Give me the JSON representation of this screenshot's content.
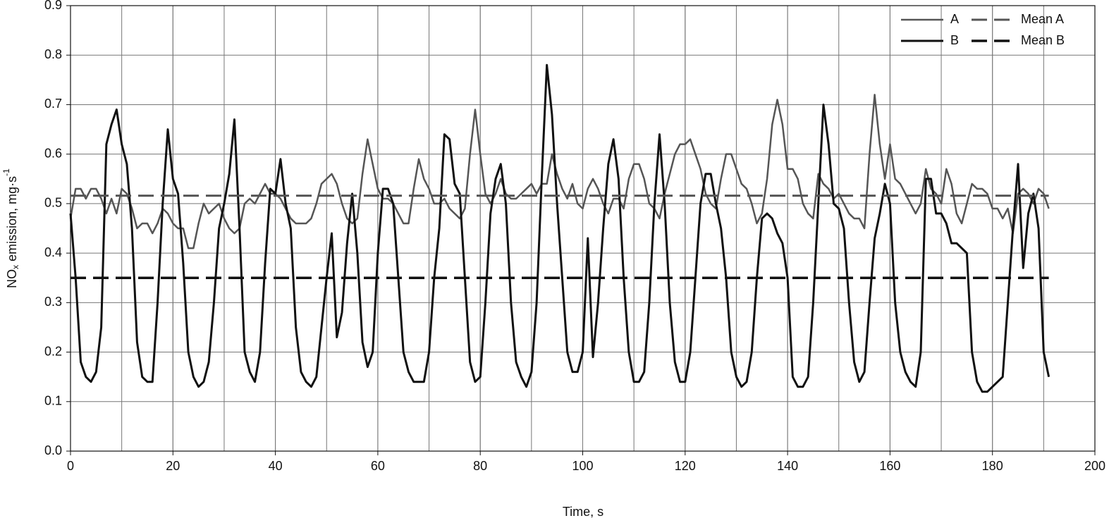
{
  "chart_data": {
    "type": "line",
    "xlabel": "Time, s",
    "ylabel": {
      "parts": [
        "NO",
        "x",
        " emission, mg·s",
        "-1"
      ]
    },
    "xlim": [
      0,
      200
    ],
    "xticks": [
      0,
      20,
      40,
      60,
      80,
      100,
      120,
      140,
      160,
      180,
      200
    ],
    "x_grid_step": 10,
    "ylim": [
      0,
      0.9
    ],
    "yticks": [
      {
        "value": 0,
        "label": "0.0"
      },
      0.1,
      0.2,
      0.3,
      0.4,
      0.5,
      0.6,
      0.7,
      0.8,
      0.9
    ],
    "grid": true,
    "legend": "upper right",
    "x": [
      0,
      1,
      2,
      3,
      4,
      5,
      6,
      7,
      8,
      9,
      10,
      11,
      12,
      13,
      14,
      15,
      16,
      17,
      18,
      19,
      20,
      21,
      22,
      23,
      24,
      25,
      26,
      27,
      28,
      29,
      30,
      31,
      32,
      33,
      34,
      35,
      36,
      37,
      38,
      39,
      40,
      41,
      42,
      43,
      44,
      45,
      46,
      47,
      48,
      49,
      50,
      51,
      52,
      53,
      54,
      55,
      56,
      57,
      58,
      59,
      60,
      61,
      62,
      63,
      64,
      65,
      66,
      67,
      68,
      69,
      70,
      71,
      72,
      73,
      74,
      75,
      76,
      77,
      78,
      79,
      80,
      81,
      82,
      83,
      84,
      85,
      86,
      87,
      88,
      89,
      90,
      91,
      92,
      93,
      94,
      95,
      96,
      97,
      98,
      99,
      100,
      101,
      102,
      103,
      104,
      105,
      106,
      107,
      108,
      109,
      110,
      111,
      112,
      113,
      114,
      115,
      116,
      117,
      118,
      119,
      120,
      121,
      122,
      123,
      124,
      125,
      126,
      127,
      128,
      129,
      130,
      131,
      132,
      133,
      134,
      135,
      136,
      137,
      138,
      139,
      140,
      141,
      142,
      143,
      144,
      145,
      146,
      147,
      148,
      149,
      150,
      151,
      152,
      153,
      154,
      155,
      156,
      157,
      158,
      159,
      160,
      161,
      162,
      163,
      164,
      165,
      166,
      167,
      168,
      169,
      170,
      171,
      172,
      173,
      174,
      175,
      176,
      177,
      178,
      179,
      180,
      181,
      182,
      183,
      184,
      185,
      186,
      187,
      188,
      189,
      190,
      191
    ],
    "series": [
      {
        "name": "A",
        "color": "#555555",
        "dash": false,
        "width": 2.5,
        "values": [
          0.47,
          0.53,
          0.53,
          0.51,
          0.53,
          0.53,
          0.51,
          0.48,
          0.51,
          0.48,
          0.53,
          0.52,
          0.49,
          0.45,
          0.46,
          0.46,
          0.44,
          0.46,
          0.49,
          0.48,
          0.46,
          0.45,
          0.45,
          0.41,
          0.41,
          0.46,
          0.5,
          0.48,
          0.49,
          0.5,
          0.47,
          0.45,
          0.44,
          0.45,
          0.5,
          0.51,
          0.5,
          0.52,
          0.54,
          0.52,
          0.52,
          0.51,
          0.49,
          0.47,
          0.46,
          0.46,
          0.46,
          0.47,
          0.5,
          0.54,
          0.55,
          0.56,
          0.54,
          0.5,
          0.47,
          0.46,
          0.47,
          0.56,
          0.63,
          0.58,
          0.53,
          0.51,
          0.51,
          0.5,
          0.48,
          0.46,
          0.46,
          0.53,
          0.59,
          0.55,
          0.53,
          0.5,
          0.5,
          0.51,
          0.49,
          0.48,
          0.47,
          0.49,
          0.6,
          0.69,
          0.6,
          0.52,
          0.5,
          0.52,
          0.55,
          0.52,
          0.51,
          0.51,
          0.52,
          0.53,
          0.54,
          0.52,
          0.54,
          0.54,
          0.6,
          0.56,
          0.53,
          0.51,
          0.54,
          0.5,
          0.49,
          0.53,
          0.55,
          0.53,
          0.5,
          0.48,
          0.51,
          0.51,
          0.49,
          0.55,
          0.58,
          0.58,
          0.55,
          0.5,
          0.49,
          0.47,
          0.52,
          0.56,
          0.6,
          0.62,
          0.62,
          0.63,
          0.6,
          0.57,
          0.52,
          0.5,
          0.49,
          0.55,
          0.6,
          0.6,
          0.57,
          0.54,
          0.53,
          0.5,
          0.46,
          0.48,
          0.55,
          0.66,
          0.71,
          0.66,
          0.57,
          0.57,
          0.55,
          0.5,
          0.48,
          0.47,
          0.56,
          0.54,
          0.53,
          0.51,
          0.52,
          0.5,
          0.48,
          0.47,
          0.47,
          0.45,
          0.6,
          0.72,
          0.62,
          0.55,
          0.62,
          0.55,
          0.54,
          0.52,
          0.5,
          0.48,
          0.5,
          0.57,
          0.53,
          0.52,
          0.5,
          0.57,
          0.54,
          0.48,
          0.46,
          0.5,
          0.54,
          0.53,
          0.53,
          0.52,
          0.49,
          0.49,
          0.47,
          0.49,
          0.44,
          0.52,
          0.53,
          0.52,
          0.5,
          0.53,
          0.52,
          0.49
        ]
      },
      {
        "name": "B",
        "color": "#111111",
        "dash": false,
        "width": 3,
        "values": [
          0.48,
          0.35,
          0.18,
          0.15,
          0.14,
          0.16,
          0.25,
          0.62,
          0.66,
          0.69,
          0.62,
          0.58,
          0.45,
          0.22,
          0.15,
          0.14,
          0.14,
          0.3,
          0.5,
          0.65,
          0.55,
          0.52,
          0.38,
          0.2,
          0.15,
          0.13,
          0.14,
          0.18,
          0.3,
          0.45,
          0.5,
          0.56,
          0.67,
          0.45,
          0.2,
          0.16,
          0.14,
          0.2,
          0.38,
          0.53,
          0.52,
          0.59,
          0.5,
          0.45,
          0.25,
          0.16,
          0.14,
          0.13,
          0.15,
          0.25,
          0.35,
          0.44,
          0.23,
          0.28,
          0.42,
          0.52,
          0.4,
          0.22,
          0.17,
          0.2,
          0.4,
          0.53,
          0.53,
          0.5,
          0.35,
          0.2,
          0.16,
          0.14,
          0.14,
          0.14,
          0.2,
          0.35,
          0.45,
          0.64,
          0.63,
          0.54,
          0.52,
          0.35,
          0.18,
          0.14,
          0.15,
          0.3,
          0.48,
          0.55,
          0.58,
          0.5,
          0.3,
          0.18,
          0.15,
          0.13,
          0.16,
          0.3,
          0.55,
          0.78,
          0.68,
          0.5,
          0.35,
          0.2,
          0.16,
          0.16,
          0.2,
          0.43,
          0.19,
          0.3,
          0.45,
          0.58,
          0.63,
          0.55,
          0.35,
          0.2,
          0.14,
          0.14,
          0.16,
          0.3,
          0.5,
          0.64,
          0.5,
          0.3,
          0.18,
          0.14,
          0.14,
          0.2,
          0.35,
          0.5,
          0.56,
          0.56,
          0.5,
          0.45,
          0.35,
          0.2,
          0.15,
          0.13,
          0.14,
          0.2,
          0.35,
          0.47,
          0.48,
          0.47,
          0.44,
          0.42,
          0.35,
          0.15,
          0.13,
          0.13,
          0.15,
          0.3,
          0.5,
          0.7,
          0.62,
          0.5,
          0.49,
          0.45,
          0.3,
          0.18,
          0.14,
          0.16,
          0.3,
          0.43,
          0.48,
          0.54,
          0.5,
          0.3,
          0.2,
          0.16,
          0.14,
          0.13,
          0.2,
          0.55,
          0.55,
          0.48,
          0.48,
          0.46,
          0.42,
          0.42,
          0.41,
          0.4,
          0.2,
          0.14,
          0.12,
          0.12,
          0.13,
          0.14,
          0.15,
          0.3,
          0.45,
          0.58,
          0.37,
          0.48,
          0.52,
          0.45,
          0.2,
          0.15
        ]
      },
      {
        "name": "Mean A",
        "color": "#555555",
        "dash": true,
        "width": 3,
        "x": [
          0,
          191
        ],
        "values": [
          0.516,
          0.516
        ]
      },
      {
        "name": "Mean B",
        "color": "#111111",
        "dash": true,
        "width": 3.5,
        "x": [
          0,
          191
        ],
        "values": [
          0.35,
          0.35
        ]
      }
    ]
  }
}
